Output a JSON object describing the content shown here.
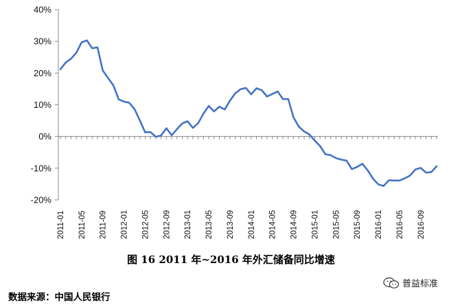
{
  "chart_data": {
    "type": "line",
    "title": "图 16   2011 年~2016 年外汇储备同比增速",
    "xlabel": "",
    "ylabel": "",
    "ylim": [
      -20,
      40
    ],
    "yticks": [
      "40%",
      "30%",
      "20%",
      "10%",
      "0%",
      "-10%",
      "-20%"
    ],
    "ytick_values": [
      40,
      30,
      20,
      10,
      0,
      -10,
      -20
    ],
    "x_tick_labels": [
      "2011-01",
      "2011-05",
      "2011-09",
      "2012-01",
      "2012-05",
      "2012-09",
      "2013-01",
      "2013-05",
      "2013-09",
      "2014-01",
      "2014-05",
      "2014-09",
      "2015-01",
      "2015-05",
      "2015-09",
      "2016-01",
      "2016-05",
      "2016-09"
    ],
    "grid": false,
    "legend": "none",
    "line_color": "#4472c4",
    "x": [
      "2011-01",
      "2011-02",
      "2011-03",
      "2011-04",
      "2011-05",
      "2011-06",
      "2011-07",
      "2011-08",
      "2011-09",
      "2011-10",
      "2011-11",
      "2011-12",
      "2012-01",
      "2012-02",
      "2012-03",
      "2012-04",
      "2012-05",
      "2012-06",
      "2012-07",
      "2012-08",
      "2012-09",
      "2012-10",
      "2012-11",
      "2012-12",
      "2013-01",
      "2013-02",
      "2013-03",
      "2013-04",
      "2013-05",
      "2013-06",
      "2013-07",
      "2013-08",
      "2013-09",
      "2013-10",
      "2013-11",
      "2013-12",
      "2014-01",
      "2014-02",
      "2014-03",
      "2014-04",
      "2014-05",
      "2014-06",
      "2014-07",
      "2014-08",
      "2014-09",
      "2014-10",
      "2014-11",
      "2014-12",
      "2015-01",
      "2015-02",
      "2015-03",
      "2015-04",
      "2015-05",
      "2015-06",
      "2015-07",
      "2015-08",
      "2015-09",
      "2015-10",
      "2015-11",
      "2015-12",
      "2016-01",
      "2016-02",
      "2016-03",
      "2016-04",
      "2016-05",
      "2016-06",
      "2016-07",
      "2016-08",
      "2016-09",
      "2016-10",
      "2016-11",
      "2016-12"
    ],
    "series": [
      {
        "values": [
          21.2,
          23.3,
          24.5,
          26.4,
          29.7,
          30.3,
          27.8,
          28.1,
          20.8,
          18.4,
          16.1,
          11.7,
          11.0,
          10.6,
          8.6,
          5.0,
          1.3,
          1.4,
          -0.1,
          0.3,
          2.6,
          0.4,
          2.3,
          4.1,
          4.8,
          2.7,
          4.2,
          7.2,
          9.6,
          7.9,
          9.4,
          8.5,
          11.3,
          13.6,
          14.9,
          15.3,
          13.3,
          15.2,
          14.6,
          12.6,
          13.4,
          14.2,
          11.8,
          11.8,
          6.0,
          3.1,
          1.6,
          0.6,
          -1.3,
          -3.0,
          -5.6,
          -5.9,
          -6.8,
          -7.3,
          -7.6,
          -10.3,
          -9.6,
          -8.6,
          -10.7,
          -13.3,
          -15.1,
          -15.6,
          -13.8,
          -13.9,
          -13.9,
          -13.2,
          -12.3,
          -10.4,
          -9.9,
          -11.4,
          -11.2,
          -9.4
        ]
      }
    ]
  },
  "caption": "图 16   2011 年~2016 年外汇储备同比增速",
  "source": "数据来源：中国人民银行",
  "watermark": {
    "icon": "wechat-icon",
    "text": "普益标准"
  }
}
